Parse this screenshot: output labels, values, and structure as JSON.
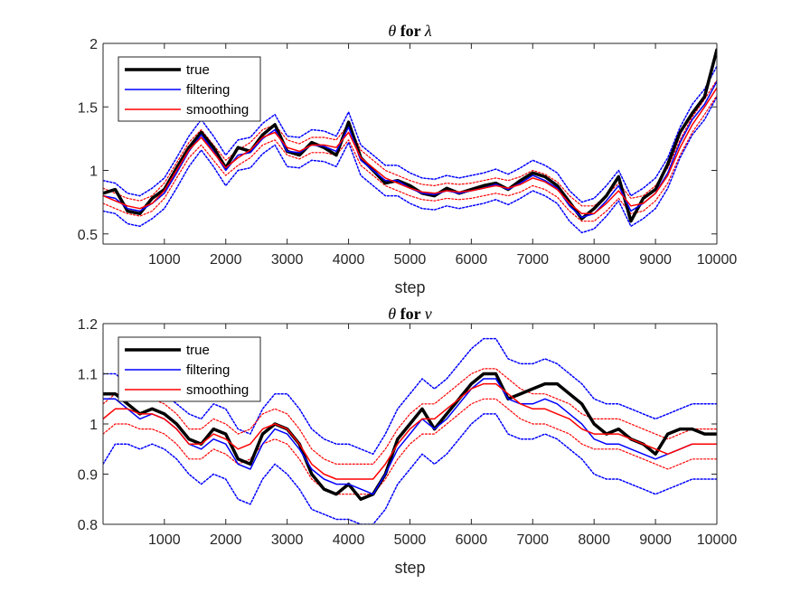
{
  "chart_data": [
    {
      "type": "line",
      "title_prefix": "θ",
      "title_mid": " for ",
      "title_symbol": "λ",
      "xlabel": "step",
      "ylabel": "",
      "xlim": [
        1,
        10000
      ],
      "ylim": [
        0.42,
        2.0
      ],
      "xticks": [
        1000,
        2000,
        3000,
        4000,
        5000,
        6000,
        7000,
        8000,
        9000,
        10000
      ],
      "yticks": [
        0.5,
        1,
        1.5,
        2
      ],
      "ytick_labels": [
        "0.5",
        "1",
        "1.5",
        "2"
      ],
      "legend": {
        "placement": "top-left",
        "entries": [
          "true",
          "filtering",
          "smoothing"
        ]
      },
      "x": [
        1,
        200,
        400,
        600,
        800,
        1000,
        1200,
        1400,
        1600,
        1800,
        2000,
        2200,
        2400,
        2600,
        2800,
        3000,
        3200,
        3400,
        3600,
        3800,
        4000,
        4200,
        4400,
        4600,
        4800,
        5000,
        5200,
        5400,
        5600,
        5800,
        6000,
        6200,
        6400,
        6600,
        6800,
        7000,
        7200,
        7400,
        7600,
        7800,
        8000,
        8200,
        8400,
        8600,
        8800,
        9000,
        9200,
        9400,
        9600,
        9800,
        10000
      ],
      "series": [
        {
          "name": "true",
          "color": "#000000",
          "width": 3.5,
          "dash": "",
          "values": [
            0.82,
            0.85,
            0.68,
            0.66,
            0.78,
            0.85,
            1.02,
            1.18,
            1.3,
            1.18,
            1.02,
            1.18,
            1.15,
            1.28,
            1.36,
            1.15,
            1.12,
            1.22,
            1.18,
            1.12,
            1.38,
            1.1,
            1.0,
            0.9,
            0.92,
            0.88,
            0.82,
            0.8,
            0.86,
            0.82,
            0.85,
            0.88,
            0.9,
            0.85,
            0.92,
            0.98,
            0.95,
            0.88,
            0.75,
            0.62,
            0.7,
            0.8,
            0.95,
            0.6,
            0.78,
            0.85,
            1.05,
            1.3,
            1.45,
            1.58,
            1.95
          ]
        },
        {
          "name": "filtering",
          "color": "#0000ff",
          "width": 1.5,
          "dash": "",
          "values": [
            0.8,
            0.78,
            0.7,
            0.68,
            0.74,
            0.82,
            0.98,
            1.15,
            1.28,
            1.15,
            1.0,
            1.12,
            1.14,
            1.25,
            1.32,
            1.15,
            1.14,
            1.2,
            1.19,
            1.15,
            1.34,
            1.08,
            1.0,
            0.92,
            0.92,
            0.86,
            0.82,
            0.81,
            0.84,
            0.82,
            0.84,
            0.86,
            0.89,
            0.85,
            0.9,
            0.96,
            0.92,
            0.86,
            0.72,
            0.63,
            0.66,
            0.76,
            0.88,
            0.68,
            0.74,
            0.82,
            0.98,
            1.22,
            1.4,
            1.52,
            1.7
          ]
        },
        {
          "name": "smoothing",
          "color": "#ff0000",
          "width": 1.5,
          "dash": "",
          "values": [
            0.8,
            0.76,
            0.72,
            0.7,
            0.74,
            0.84,
            1.0,
            1.16,
            1.26,
            1.14,
            1.02,
            1.1,
            1.16,
            1.26,
            1.3,
            1.18,
            1.15,
            1.2,
            1.2,
            1.18,
            1.3,
            1.1,
            1.02,
            0.94,
            0.9,
            0.86,
            0.83,
            0.82,
            0.84,
            0.83,
            0.84,
            0.86,
            0.88,
            0.86,
            0.89,
            0.94,
            0.91,
            0.85,
            0.74,
            0.66,
            0.66,
            0.74,
            0.84,
            0.72,
            0.74,
            0.82,
            0.96,
            1.18,
            1.36,
            1.5,
            1.65
          ]
        },
        {
          "name": "filtering bound",
          "color": "#0000ff",
          "width": 1.5,
          "dash": "2,2",
          "values": [
            0.92,
            0.9,
            0.82,
            0.8,
            0.86,
            0.94,
            1.1,
            1.27,
            1.4,
            1.27,
            1.12,
            1.24,
            1.26,
            1.37,
            1.44,
            1.27,
            1.26,
            1.32,
            1.31,
            1.27,
            1.46,
            1.2,
            1.12,
            1.04,
            1.04,
            0.98,
            0.94,
            0.93,
            0.96,
            0.94,
            0.96,
            0.98,
            1.01,
            0.97,
            1.02,
            1.08,
            1.04,
            0.98,
            0.84,
            0.75,
            0.78,
            0.88,
            1.0,
            0.8,
            0.86,
            0.94,
            1.1,
            1.34,
            1.52,
            1.64,
            1.82
          ]
        },
        {
          "name": "filtering bound",
          "color": "#0000ff",
          "width": 1.5,
          "dash": "2,2",
          "values": [
            0.68,
            0.66,
            0.58,
            0.56,
            0.62,
            0.7,
            0.86,
            1.03,
            1.16,
            1.03,
            0.88,
            1.0,
            1.02,
            1.13,
            1.2,
            1.03,
            1.02,
            1.08,
            1.07,
            1.03,
            1.22,
            0.96,
            0.88,
            0.8,
            0.8,
            0.74,
            0.7,
            0.69,
            0.72,
            0.7,
            0.72,
            0.74,
            0.77,
            0.73,
            0.78,
            0.84,
            0.8,
            0.74,
            0.6,
            0.51,
            0.54,
            0.64,
            0.76,
            0.56,
            0.62,
            0.7,
            0.86,
            1.1,
            1.28,
            1.4,
            1.58
          ]
        },
        {
          "name": "smoothing bound",
          "color": "#ff0000",
          "width": 1.2,
          "dash": "2,2",
          "values": [
            0.86,
            0.82,
            0.78,
            0.76,
            0.8,
            0.9,
            1.06,
            1.22,
            1.32,
            1.2,
            1.08,
            1.16,
            1.22,
            1.32,
            1.36,
            1.24,
            1.21,
            1.26,
            1.26,
            1.24,
            1.36,
            1.16,
            1.08,
            1.0,
            0.96,
            0.92,
            0.89,
            0.88,
            0.9,
            0.89,
            0.9,
            0.92,
            0.94,
            0.92,
            0.95,
            1.0,
            0.97,
            0.91,
            0.8,
            0.72,
            0.72,
            0.8,
            0.9,
            0.78,
            0.8,
            0.88,
            1.02,
            1.24,
            1.42,
            1.56,
            1.71
          ]
        },
        {
          "name": "smoothing bound",
          "color": "#ff0000",
          "width": 1.2,
          "dash": "2,2",
          "values": [
            0.74,
            0.7,
            0.66,
            0.64,
            0.68,
            0.78,
            0.94,
            1.1,
            1.2,
            1.08,
            0.96,
            1.04,
            1.1,
            1.2,
            1.24,
            1.12,
            1.09,
            1.14,
            1.14,
            1.12,
            1.24,
            1.04,
            0.96,
            0.88,
            0.84,
            0.8,
            0.77,
            0.76,
            0.78,
            0.77,
            0.78,
            0.8,
            0.82,
            0.8,
            0.83,
            0.88,
            0.85,
            0.79,
            0.68,
            0.6,
            0.6,
            0.68,
            0.78,
            0.66,
            0.68,
            0.76,
            0.9,
            1.12,
            1.3,
            1.44,
            1.59
          ]
        }
      ]
    },
    {
      "type": "line",
      "title_prefix": "θ",
      "title_mid": " for ",
      "title_symbol": "ν",
      "xlabel": "step",
      "ylabel": "",
      "xlim": [
        1,
        10000
      ],
      "ylim": [
        0.8,
        1.2
      ],
      "xticks": [
        1000,
        2000,
        3000,
        4000,
        5000,
        6000,
        7000,
        8000,
        9000,
        10000
      ],
      "yticks": [
        0.8,
        0.9,
        1.0,
        1.1,
        1.2
      ],
      "ytick_labels": [
        "0.8",
        "0.9",
        "1",
        "1.1",
        "1.2"
      ],
      "legend": {
        "placement": "top-left",
        "entries": [
          "true",
          "filtering",
          "smoothing"
        ]
      },
      "x": [
        1,
        200,
        400,
        600,
        800,
        1000,
        1200,
        1400,
        1600,
        1800,
        2000,
        2200,
        2400,
        2600,
        2800,
        3000,
        3200,
        3400,
        3600,
        3800,
        4000,
        4200,
        4400,
        4600,
        4800,
        5000,
        5200,
        5400,
        5600,
        5800,
        6000,
        6200,
        6400,
        6600,
        6800,
        7000,
        7200,
        7400,
        7600,
        7800,
        8000,
        8200,
        8400,
        8600,
        8800,
        9000,
        9200,
        9400,
        9600,
        9800,
        10000
      ],
      "series": [
        {
          "name": "true",
          "color": "#000000",
          "width": 3.5,
          "dash": "",
          "values": [
            1.06,
            1.06,
            1.04,
            1.02,
            1.03,
            1.02,
            1.0,
            0.97,
            0.96,
            0.99,
            0.98,
            0.93,
            0.92,
            0.98,
            1.0,
            0.99,
            0.96,
            0.9,
            0.87,
            0.86,
            0.88,
            0.85,
            0.86,
            0.9,
            0.97,
            1.0,
            1.03,
            0.99,
            1.02,
            1.05,
            1.08,
            1.1,
            1.1,
            1.05,
            1.06,
            1.07,
            1.08,
            1.08,
            1.06,
            1.04,
            1.0,
            0.98,
            0.99,
            0.97,
            0.96,
            0.94,
            0.98,
            0.99,
            0.99,
            0.98,
            0.98
          ]
        },
        {
          "name": "filtering",
          "color": "#0000ff",
          "width": 1.5,
          "dash": "",
          "values": [
            1.05,
            1.05,
            1.03,
            1.01,
            1.02,
            1.01,
            0.99,
            0.96,
            0.95,
            0.97,
            0.96,
            0.92,
            0.91,
            0.96,
            0.99,
            0.98,
            0.95,
            0.91,
            0.89,
            0.88,
            0.88,
            0.87,
            0.86,
            0.9,
            0.95,
            0.98,
            1.01,
            0.99,
            1.01,
            1.04,
            1.07,
            1.09,
            1.09,
            1.05,
            1.04,
            1.04,
            1.05,
            1.04,
            1.02,
            1.0,
            0.97,
            0.96,
            0.96,
            0.95,
            0.94,
            0.93,
            0.94,
            0.95,
            0.96,
            0.96,
            0.96
          ]
        },
        {
          "name": "smoothing",
          "color": "#ff0000",
          "width": 1.5,
          "dash": "",
          "values": [
            1.01,
            1.03,
            1.03,
            1.02,
            1.02,
            1.01,
            0.99,
            0.96,
            0.96,
            0.98,
            0.97,
            0.95,
            0.96,
            0.99,
            1.0,
            0.99,
            0.96,
            0.92,
            0.9,
            0.89,
            0.89,
            0.89,
            0.89,
            0.92,
            0.96,
            0.99,
            1.01,
            1.01,
            1.03,
            1.05,
            1.07,
            1.08,
            1.08,
            1.06,
            1.04,
            1.03,
            1.03,
            1.02,
            1.01,
            0.99,
            0.98,
            0.98,
            0.98,
            0.97,
            0.96,
            0.95,
            0.94,
            0.95,
            0.96,
            0.96,
            0.96
          ]
        },
        {
          "name": "filtering bound",
          "color": "#0000ff",
          "width": 1.5,
          "dash": "2,2",
          "values": [
            1.1,
            1.1,
            1.08,
            1.06,
            1.07,
            1.06,
            1.04,
            1.02,
            1.01,
            1.04,
            1.03,
            0.99,
            0.98,
            1.03,
            1.06,
            1.06,
            1.03,
            0.99,
            0.97,
            0.96,
            0.96,
            0.95,
            0.94,
            0.98,
            1.03,
            1.06,
            1.09,
            1.07,
            1.09,
            1.12,
            1.15,
            1.17,
            1.17,
            1.13,
            1.12,
            1.12,
            1.13,
            1.12,
            1.1,
            1.08,
            1.05,
            1.04,
            1.04,
            1.03,
            1.02,
            1.01,
            1.02,
            1.03,
            1.04,
            1.04,
            1.04
          ]
        },
        {
          "name": "filtering bound",
          "color": "#0000ff",
          "width": 1.5,
          "dash": "2,2",
          "values": [
            0.92,
            0.96,
            0.96,
            0.95,
            0.96,
            0.95,
            0.93,
            0.9,
            0.88,
            0.9,
            0.89,
            0.85,
            0.84,
            0.89,
            0.92,
            0.9,
            0.87,
            0.83,
            0.82,
            0.81,
            0.81,
            0.8,
            0.8,
            0.83,
            0.88,
            0.91,
            0.94,
            0.92,
            0.94,
            0.97,
            1.0,
            1.02,
            1.02,
            0.98,
            0.97,
            0.97,
            0.98,
            0.97,
            0.95,
            0.93,
            0.9,
            0.89,
            0.89,
            0.88,
            0.87,
            0.86,
            0.87,
            0.88,
            0.89,
            0.89,
            0.89
          ]
        },
        {
          "name": "smoothing bound",
          "color": "#ff0000",
          "width": 1.2,
          "dash": "2,2",
          "values": [
            1.04,
            1.06,
            1.06,
            1.05,
            1.05,
            1.04,
            1.02,
            0.99,
            0.99,
            1.01,
            1.0,
            0.98,
            0.99,
            1.02,
            1.03,
            1.02,
            0.99,
            0.95,
            0.93,
            0.92,
            0.92,
            0.92,
            0.92,
            0.95,
            0.99,
            1.02,
            1.04,
            1.04,
            1.06,
            1.08,
            1.1,
            1.11,
            1.11,
            1.09,
            1.07,
            1.06,
            1.06,
            1.05,
            1.04,
            1.02,
            1.01,
            1.01,
            1.01,
            1.0,
            0.99,
            0.98,
            0.97,
            0.98,
            0.99,
            0.99,
            0.99
          ]
        },
        {
          "name": "smoothing bound",
          "color": "#ff0000",
          "width": 1.2,
          "dash": "2,2",
          "values": [
            0.98,
            1.0,
            1.0,
            0.99,
            0.99,
            0.98,
            0.96,
            0.93,
            0.93,
            0.95,
            0.94,
            0.92,
            0.93,
            0.96,
            0.97,
            0.96,
            0.93,
            0.89,
            0.87,
            0.86,
            0.86,
            0.86,
            0.86,
            0.89,
            0.93,
            0.96,
            0.98,
            0.98,
            1.0,
            1.02,
            1.04,
            1.05,
            1.05,
            1.03,
            1.01,
            1.0,
            1.0,
            0.99,
            0.98,
            0.96,
            0.95,
            0.95,
            0.95,
            0.94,
            0.93,
            0.92,
            0.91,
            0.92,
            0.93,
            0.93,
            0.93
          ]
        }
      ]
    }
  ]
}
